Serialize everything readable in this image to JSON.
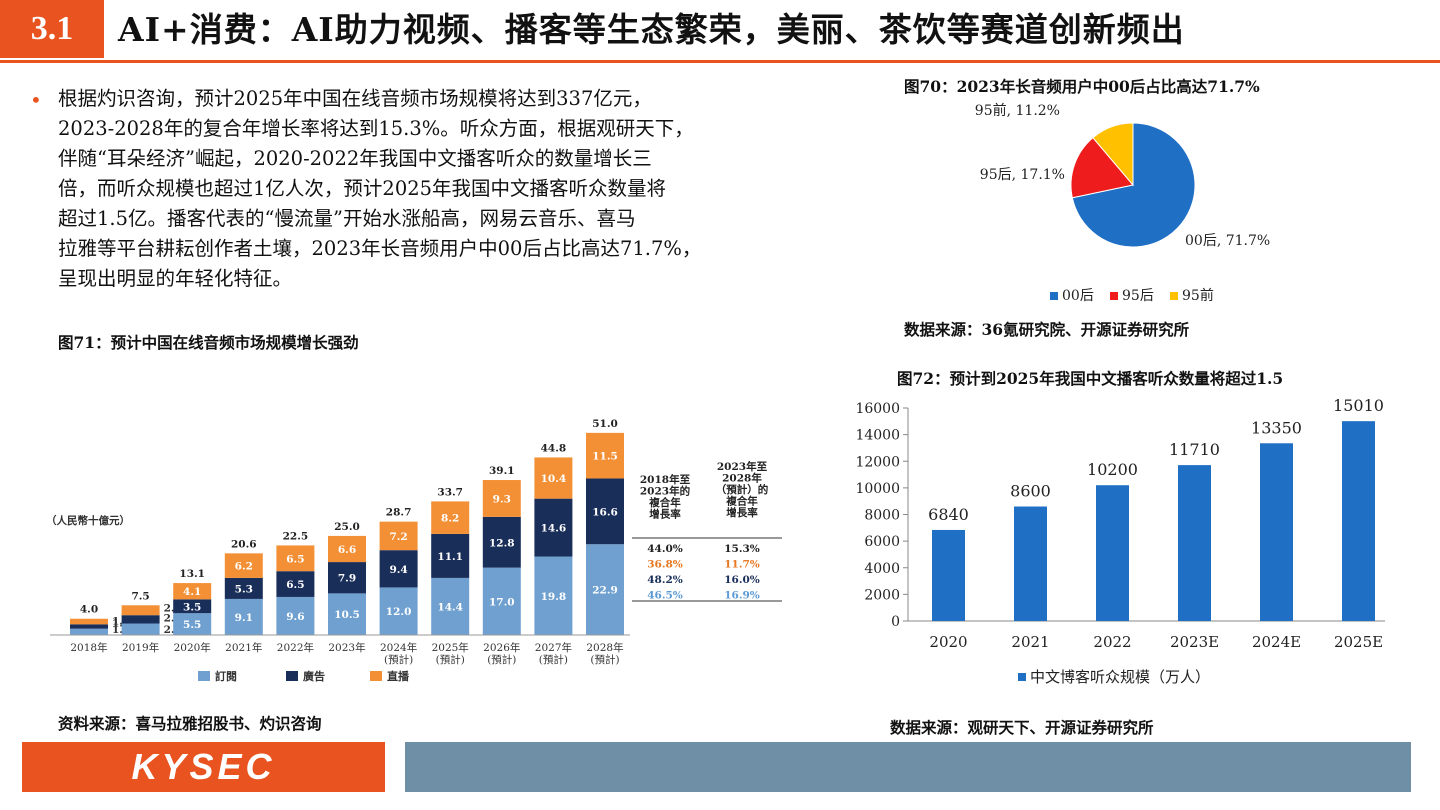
{
  "header": {
    "section_number": "3.1",
    "title": "AI+消费：AI助力视频、播客等生态繁荣，美丽、茶饮等赛道创新频出"
  },
  "bullet": {
    "lines": [
      "根据灼识咨询，预计2025年中国在线音频市场规模将达到337亿元，",
      "2023-2028年的复合年增长率将达到15.3%。听众方面，根据观研天下，",
      "伴随“耳朵经济”崛起，2020-2022年我国中文播客听众的数量增长三",
      "倍，而听众规模也超过1亿人次，预计2025年我国中文播客听众数量将",
      "超过1.5亿。播客代表的“慢流量”开始水涨船高，网易云音乐、喜马",
      "拉雅等平台耕耘创作者土壤，2023年长音频用户中00后占比高达71.7%，",
      "呈现出明显的年轻化特征。"
    ]
  },
  "fig70": {
    "caption": "图70：2023年长音频用户中00后占比高达71.7%",
    "source": "数据来源：36氪研究院、开源证券研究所"
  },
  "fig71": {
    "caption": "图71：预计中国在线音频市场规模增长强劲",
    "source": "资料来源：喜马拉雅招股书、灼识咨询",
    "unit": "（人民幣十億元）",
    "table": {
      "headers": [
        "2018年至\n2023年的\n複合年\n增長率",
        "2023年至\n2028年\n（預計）的\n複合年\n增長率"
      ],
      "rows": [
        {
          "a": "44.0%",
          "b": "15.3%",
          "color": "#222222"
        },
        {
          "a": "36.8%",
          "b": "11.7%",
          "color": "#e87722"
        },
        {
          "a": "48.2%",
          "b": "16.0%",
          "color": "#1a2e5a"
        },
        {
          "a": "46.5%",
          "b": "16.9%",
          "color": "#5b9bd5"
        }
      ]
    }
  },
  "fig72": {
    "caption": "图72：预计到2025年我国中文播客听众数量将超过1.5",
    "source": "数据来源：观研天下、开源证券研究所"
  },
  "footer": {
    "logo": "KYSEC"
  },
  "chart_data": [
    {
      "type": "pie",
      "labels": [
        "00后",
        "95后",
        "95前"
      ],
      "values": [
        71.7,
        17.1,
        11.2
      ],
      "data_labels": [
        "00后, 71.7%",
        "95后, 17.1%",
        "95前, 11.2%"
      ],
      "colors": [
        "#1f6fc5",
        "#ee1c1c",
        "#ffc000"
      ],
      "legend": "bottom"
    },
    {
      "type": "bar",
      "stacked": true,
      "categories": [
        "2018年",
        "2019年",
        "2020年",
        "2021年",
        "2022年",
        "2023年",
        "2024年\n(預計)",
        "2025年\n(預計)",
        "2026年\n(預計)",
        "2027年\n(預計)",
        "2028年\n(預計)"
      ],
      "series": [
        {
          "name": "訂閱",
          "color": "#6fa0d0",
          "values": [
            1.6,
            2.9,
            5.5,
            9.1,
            9.6,
            10.5,
            12.0,
            14.4,
            17.0,
            19.8,
            22.9
          ]
        },
        {
          "name": "廣告",
          "color": "#1a2e5a",
          "values": [
            1.1,
            2.1,
            3.5,
            5.3,
            6.5,
            7.9,
            9.4,
            11.1,
            12.8,
            14.6,
            16.6
          ]
        },
        {
          "name": "直播",
          "color": "#f39035",
          "values": [
            1.4,
            2.5,
            4.1,
            6.2,
            6.5,
            6.6,
            7.2,
            8.2,
            9.3,
            10.4,
            11.5
          ]
        }
      ],
      "totals": [
        4.0,
        7.5,
        13.1,
        20.6,
        22.5,
        25.0,
        28.7,
        33.7,
        39.1,
        44.8,
        51.0
      ],
      "ylim": [
        0,
        55
      ],
      "legend": "bottom"
    },
    {
      "type": "bar",
      "categories": [
        "2020",
        "2021",
        "2022",
        "2023E",
        "2024E",
        "2025E"
      ],
      "series": [
        {
          "name": "中文博客听众规模（万人）",
          "values": [
            6840,
            8600,
            10200,
            11710,
            13350,
            15010
          ]
        }
      ],
      "yticks": [
        "0",
        "2000",
        "4000",
        "6000",
        "8000",
        "10000",
        "12000",
        "14000",
        "16000"
      ],
      "ylim": [
        0,
        16000
      ],
      "color": "#1f6fc5",
      "legend": "bottom"
    }
  ]
}
